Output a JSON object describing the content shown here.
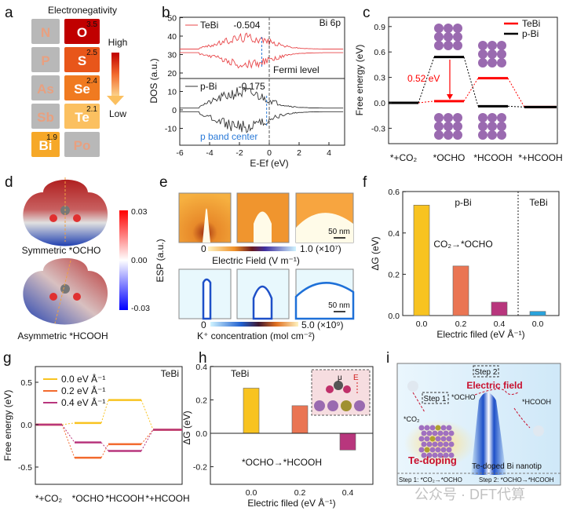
{
  "panel_labels": [
    "a",
    "b",
    "c",
    "d",
    "e",
    "f",
    "g",
    "h",
    "i"
  ],
  "panel_a": {
    "title": "Electronegativity",
    "high": "High",
    "low": "Low",
    "elements": [
      {
        "symbol": "N"
      },
      {
        "symbol": "O",
        "value": "3.5"
      },
      {
        "symbol": "P"
      },
      {
        "symbol": "S",
        "value": "2.5"
      },
      {
        "symbol": "As"
      },
      {
        "symbol": "Se",
        "value": "2.4"
      },
      {
        "symbol": "Sb"
      },
      {
        "symbol": "Te",
        "value": "2.1"
      },
      {
        "symbol": "Bi",
        "value": "1.9"
      },
      {
        "symbol": "Po"
      }
    ]
  },
  "chart_data": [
    {
      "type": "line",
      "panel": "b",
      "xlabel": "E-Ef (eV)",
      "ylabel": "DOS (a.u.)",
      "xlim": [
        -6,
        5
      ],
      "ylim": [
        -19,
        50
      ],
      "xticks": [
        "-6",
        "-4",
        "-2",
        "0",
        "2",
        "4"
      ],
      "yticks": [
        "50",
        "40",
        "30",
        "20",
        "10",
        "0",
        "-10"
      ],
      "series": [
        {
          "name": "TeBi",
          "color": "#e8474a",
          "p_band_center": -0.504,
          "label": "-0.504"
        },
        {
          "name": "p-Bi",
          "color": "#333333",
          "p_band_center": -0.175,
          "label": "-0.175"
        }
      ],
      "annotations": {
        "corner": "Bi 6p",
        "fermi": "Fermi level",
        "band_center": "p band center"
      }
    },
    {
      "type": "line",
      "panel": "c",
      "ylabel": "Free energy (eV)",
      "ylim": [
        -0.55,
        1.0
      ],
      "yticks": [
        "0.9",
        "0.6",
        "0.3",
        "0.0",
        "-0.3"
      ],
      "categories": [
        "*+CO₂",
        "*OCHO",
        "*HCOOH",
        "*+HCOOH"
      ],
      "series": [
        {
          "name": "TeBi",
          "color": "#ff0000",
          "values": [
            0,
            0.02,
            0.29,
            -0.05
          ]
        },
        {
          "name": "p-Bi",
          "color": "#000000",
          "values": [
            0,
            0.54,
            -0.04,
            -0.05
          ]
        }
      ],
      "annotation": "0.52 eV"
    },
    {
      "type": "bar",
      "panel": "f",
      "ylabel": "ΔG (eV)",
      "xlabel": "Electric filed (eV Å⁻¹)",
      "ylim": [
        0,
        0.6
      ],
      "yticks": [
        "0.6",
        "0.4",
        "0.2",
        "0.0"
      ],
      "categories": [
        "0.0",
        "0.2",
        "0.4",
        "0.0"
      ],
      "values": [
        0.535,
        0.24,
        0.065,
        0.02
      ],
      "colors": [
        "#f8c320",
        "#ea7553",
        "#b8367d",
        "#2aa3dc"
      ],
      "groups": [
        "p-Bi",
        "TeBi"
      ],
      "annotation": "CO₂→*OCHO"
    },
    {
      "type": "line",
      "panel": "g",
      "ylabel": "Free energy (eV)",
      "ylim": [
        -0.7,
        0.7
      ],
      "yticks": [
        "0.5",
        "0.0",
        "-0.5"
      ],
      "corner": "TeBi",
      "categories": [
        "*+CO₂",
        "*OCHO",
        "*HCOOH",
        "*+HCOOH"
      ],
      "series": [
        {
          "name": "0.0 eV Å⁻¹",
          "color": "#f8c320",
          "values": [
            0,
            0.02,
            0.29,
            -0.06
          ]
        },
        {
          "name": "0.2 eV Å⁻¹",
          "color": "#f26a2e",
          "values": [
            0,
            -0.39,
            -0.23,
            -0.06
          ]
        },
        {
          "name": "0.4 eV Å⁻¹",
          "color": "#b8367d",
          "values": [
            0,
            -0.21,
            -0.31,
            -0.06
          ]
        }
      ]
    },
    {
      "type": "bar",
      "panel": "h",
      "ylabel": "ΔG (eV)",
      "xlabel": "Electric filed (eV Å⁻¹)",
      "ylim": [
        -0.3,
        0.4
      ],
      "yticks": [
        "0.4",
        "0.2",
        "0.0",
        "-0.2"
      ],
      "corner": "TeBi",
      "categories": [
        "0.0",
        "0.2",
        "0.4"
      ],
      "values": [
        0.27,
        0.165,
        -0.1
      ],
      "colors": [
        "#f8c320",
        "#ea7553",
        "#b8367d"
      ],
      "annotation": "*OCHO→*HCOOH",
      "inset_labels": [
        "μ",
        "E"
      ]
    }
  ],
  "panel_d": {
    "top": "Symmetric *OCHO",
    "bottom": "Asymmetric *HCOOH",
    "colorbar": [
      "0.03",
      "0.00",
      "-0.03"
    ],
    "axis": "ESP (a.u.)"
  },
  "panel_e": {
    "scale": "50 nm",
    "cb1_min": "0",
    "cb1_max": "1.0 (×10⁷)",
    "cb1_label": "Electric Field (V m⁻¹)",
    "cb2_min": "0",
    "cb2_max": "5.0 (×10⁹)",
    "cb2_label": "K⁺ concentration (mol cm⁻²)"
  },
  "panel_i": {
    "step2": "Step 2",
    "field": "Electric field",
    "step1": "Step 1",
    "ocho": "*OCHO",
    "hcooh": "*HCOOH",
    "co2": "*CO₂",
    "doping": "Te-doping",
    "tip": "Te-doped Bi nanotip",
    "foot1": "Step 1:  *CO₂→*OCHO",
    "foot2": "Step 2:  *OCHO→*HCOOH"
  },
  "watermark": "公众号 · DFT代算"
}
